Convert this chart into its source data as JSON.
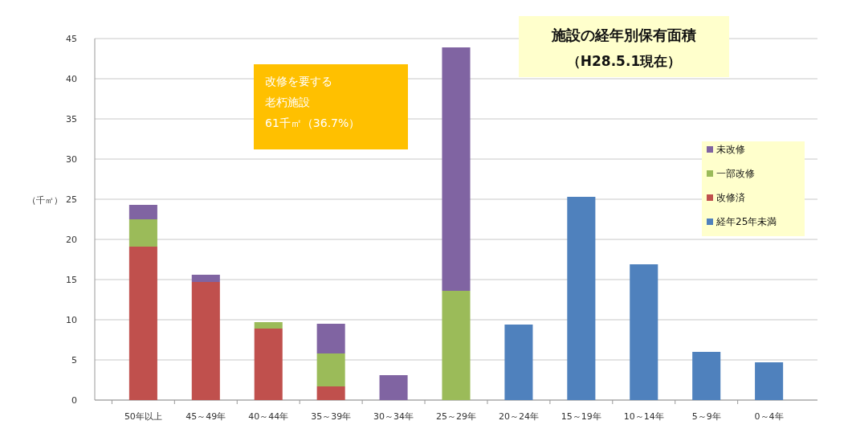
{
  "chart_data": {
    "type": "bar",
    "title": "施設の経年別保有面積",
    "subtitle": "（H28.5.1現在）",
    "ylabel": "（千㎡）",
    "annotations": [
      "改修を要する",
      "老朽施設",
      "61千㎡（36.7%）"
    ],
    "categories": [
      "50年以上",
      "45～49年",
      "40～44年",
      "35～39年",
      "30～34年",
      "25～29年",
      "20～24年",
      "15～19年",
      "10～14年",
      "5～9年",
      "0～4年"
    ],
    "stacked": true,
    "series": [
      {
        "name": "経年25年未満",
        "color": "#4f81bd",
        "values": [
          null,
          null,
          null,
          null,
          null,
          null,
          9.4,
          25.3,
          16.9,
          6.0,
          4.7
        ]
      },
      {
        "name": "改修済",
        "color": "#c0504d",
        "values": [
          19.1,
          14.7,
          8.9,
          1.7,
          null,
          null,
          null,
          null,
          null,
          null,
          null
        ]
      },
      {
        "name": "一部改修",
        "color": "#9bbb59",
        "values": [
          3.4,
          null,
          0.8,
          4.1,
          null,
          13.6,
          null,
          null,
          null,
          null,
          null
        ]
      },
      {
        "name": "未改修",
        "color": "#8064a2",
        "values": [
          1.8,
          0.9,
          null,
          3.7,
          3.1,
          30.3,
          null,
          null,
          null,
          null,
          null
        ]
      }
    ],
    "ylim": [
      0,
      45
    ],
    "yticks": [
      0,
      5,
      10,
      15,
      20,
      25,
      30,
      35,
      40,
      45
    ],
    "grid": "y",
    "legend": "right"
  }
}
